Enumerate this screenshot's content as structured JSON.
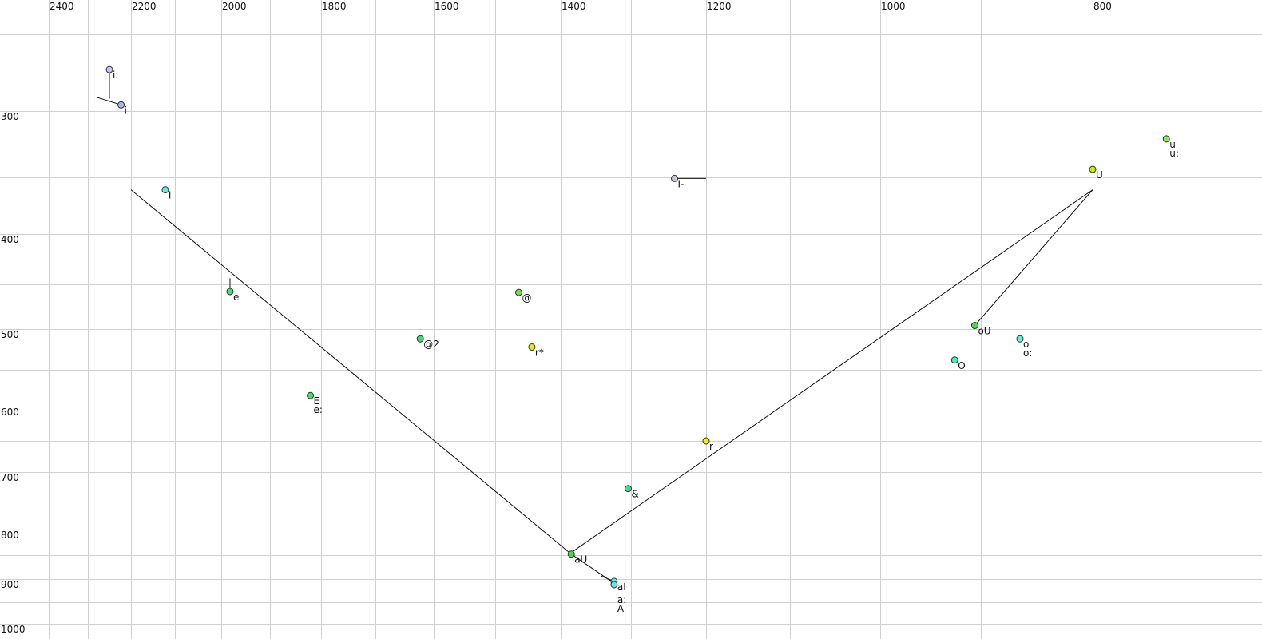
{
  "chart_data": {
    "type": "scatter",
    "title": "",
    "xlabel": "",
    "ylabel": "",
    "x_axis": {
      "quantity": "F2",
      "reversed": true,
      "placement": "top",
      "ticks": [
        2400,
        2200,
        2000,
        1800,
        1600,
        1400,
        1200,
        1000,
        800
      ],
      "gridlines": [
        2400,
        2300,
        2200,
        2100,
        2000,
        1900,
        1800,
        1700,
        1600,
        1500,
        1400,
        1300,
        1200,
        1100,
        1000,
        900,
        800,
        700
      ]
    },
    "y_axis": {
      "quantity": "F1",
      "reversed": true,
      "placement": "left",
      "ticks": [
        300,
        400,
        500,
        600,
        700,
        800,
        900,
        1000
      ],
      "gridlines": [
        250,
        300,
        350,
        400,
        450,
        500,
        550,
        600,
        650,
        700,
        750,
        800,
        850,
        900,
        950,
        1000
      ]
    },
    "grid": true,
    "points": [
      {
        "labels": [
          "i:"
        ],
        "f2": 2250,
        "f1": 273,
        "color": "#c8c0f0"
      },
      {
        "labels": [
          "i"
        ],
        "f2": 2223,
        "f1": 296,
        "color": "#a8b8f0"
      },
      {
        "labels": [
          "I"
        ],
        "f2": 2122,
        "f1": 361,
        "color": "#60f0e0"
      },
      {
        "labels": [
          "e"
        ],
        "f2": 1982,
        "f1": 458,
        "color": "#40e080"
      },
      {
        "labels": [
          "E",
          "e:"
        ],
        "f2": 1821,
        "f1": 585,
        "color": "#40e070"
      },
      {
        "labels": [
          "@2"
        ],
        "f2": 1623,
        "f1": 512,
        "color": "#40e070"
      },
      {
        "labels": [
          "@"
        ],
        "f2": 1464,
        "f1": 459,
        "color": "#70e040"
      },
      {
        "labels": [
          "r*"
        ],
        "f2": 1444,
        "f1": 522,
        "color": "#e8f000"
      },
      {
        "labels": [
          "I-"
        ],
        "f2": 1242,
        "f1": 351,
        "color": "#c8c8d8"
      },
      {
        "labels": [
          "r-"
        ],
        "f2": 1200,
        "f1": 650,
        "color": "#f0f000"
      },
      {
        "labels": [
          "&"
        ],
        "f2": 1304,
        "f1": 728,
        "color": "#40e090"
      },
      {
        "labels": [
          "aU"
        ],
        "f2": 1385,
        "f1": 848,
        "color": "#40e040"
      },
      {
        "labels": [
          "aI"
        ],
        "f2": 1324,
        "f1": 905,
        "color": "#60e8f0"
      },
      {
        "labels": [
          "a:",
          "A"
        ],
        "f2": 1324,
        "f1": 912,
        "color": "#60e8f0"
      },
      {
        "labels": [
          "oU"
        ],
        "f2": 906,
        "f1": 496,
        "color": "#40e040"
      },
      {
        "labels": [
          "O"
        ],
        "f2": 926,
        "f1": 538,
        "color": "#40f0b0"
      },
      {
        "labels": [
          "o",
          "o:"
        ],
        "f2": 865,
        "f1": 512,
        "color": "#60f0e0"
      },
      {
        "labels": [
          "U"
        ],
        "f2": 800,
        "f1": 344,
        "color": "#c0f000"
      },
      {
        "labels": [
          "u",
          "u:"
        ],
        "f2": 742,
        "f1": 321,
        "color": "#80f040"
      }
    ],
    "trajectories": [
      [
        [
          2250,
          273
        ],
        [
          2250,
          292
        ]
      ],
      [
        [
          2280,
          291
        ],
        [
          2223,
          296
        ]
      ],
      [
        [
          2200,
          361
        ],
        [
          1385,
          848
        ],
        [
          1324,
          909
        ]
      ],
      [
        [
          1385,
          845
        ],
        [
          800,
          361
        ],
        [
          906,
          496
        ]
      ],
      [
        [
          1982,
          444
        ],
        [
          1982,
          458
        ]
      ],
      [
        [
          1242,
          351
        ],
        [
          1200,
          351
        ]
      ],
      [
        [
          1342,
          894
        ],
        [
          1324,
          905
        ]
      ]
    ]
  }
}
